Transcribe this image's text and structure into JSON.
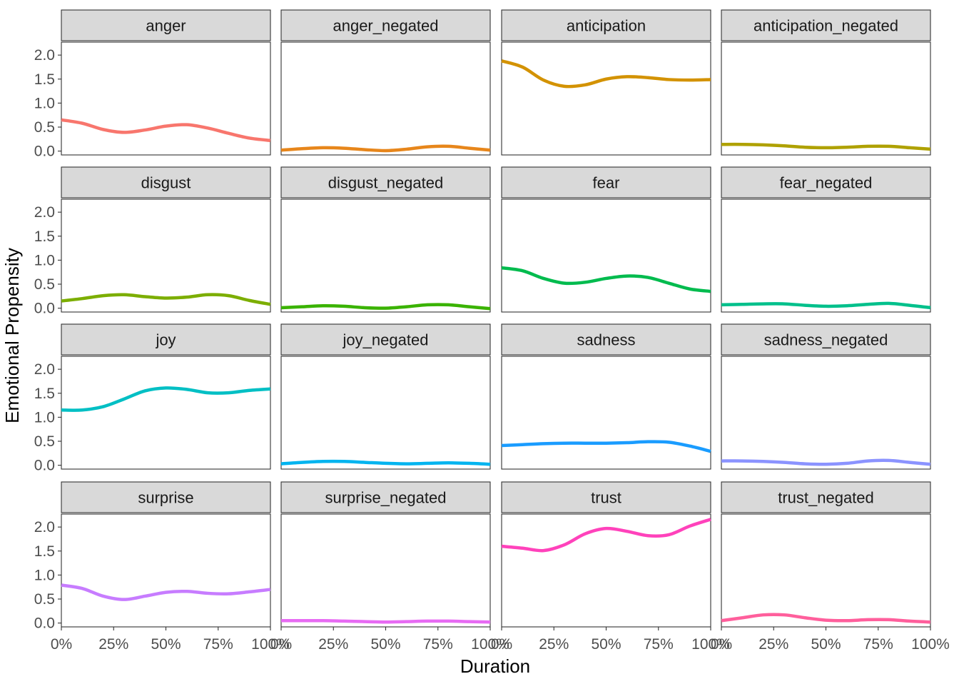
{
  "chart_data": {
    "type": "line",
    "xlabel": "Duration",
    "ylabel": "Emotional Propensity",
    "x_ticks": [
      "0%",
      "25%",
      "50%",
      "75%",
      "100%"
    ],
    "y_ticks": [
      "0.0",
      "0.5",
      "1.0",
      "1.5",
      "2.0"
    ],
    "x_range": [
      0,
      100
    ],
    "ylim": [
      -0.08,
      2.27
    ],
    "grid": false,
    "legend": "none",
    "panels": [
      {
        "name": "anger",
        "color": "#F8766D",
        "x": [
          0,
          10,
          20,
          30,
          40,
          50,
          60,
          70,
          80,
          90,
          100
        ],
        "y": [
          0.65,
          0.58,
          0.45,
          0.39,
          0.44,
          0.52,
          0.55,
          0.48,
          0.37,
          0.27,
          0.22
        ]
      },
      {
        "name": "anger_negated",
        "color": "#E7861B",
        "x": [
          0,
          10,
          20,
          30,
          40,
          50,
          60,
          70,
          80,
          90,
          100
        ],
        "y": [
          0.02,
          0.05,
          0.07,
          0.06,
          0.03,
          0.01,
          0.04,
          0.09,
          0.1,
          0.06,
          0.02
        ]
      },
      {
        "name": "anticipation",
        "color": "#D39200",
        "x": [
          0,
          10,
          20,
          30,
          40,
          50,
          60,
          70,
          80,
          90,
          100
        ],
        "y": [
          1.88,
          1.75,
          1.48,
          1.35,
          1.38,
          1.5,
          1.55,
          1.53,
          1.49,
          1.48,
          1.49
        ]
      },
      {
        "name": "anticipation_negated",
        "color": "#AFA100",
        "x": [
          0,
          10,
          20,
          30,
          40,
          50,
          60,
          70,
          80,
          90,
          100
        ],
        "y": [
          0.14,
          0.14,
          0.13,
          0.11,
          0.08,
          0.07,
          0.08,
          0.1,
          0.1,
          0.07,
          0.04
        ]
      },
      {
        "name": "disgust",
        "color": "#7CAE00",
        "x": [
          0,
          10,
          20,
          30,
          40,
          50,
          60,
          70,
          80,
          90,
          100
        ],
        "y": [
          0.15,
          0.2,
          0.26,
          0.28,
          0.24,
          0.21,
          0.23,
          0.28,
          0.26,
          0.16,
          0.08
        ]
      },
      {
        "name": "disgust_negated",
        "color": "#3AB300",
        "x": [
          0,
          10,
          20,
          30,
          40,
          50,
          60,
          70,
          80,
          90,
          100
        ],
        "y": [
          0.01,
          0.03,
          0.05,
          0.04,
          0.01,
          0.0,
          0.03,
          0.07,
          0.07,
          0.03,
          -0.01
        ]
      },
      {
        "name": "fear",
        "color": "#00BB4E",
        "x": [
          0,
          10,
          20,
          30,
          40,
          50,
          60,
          70,
          80,
          90,
          100
        ],
        "y": [
          0.84,
          0.78,
          0.62,
          0.52,
          0.54,
          0.62,
          0.67,
          0.64,
          0.52,
          0.4,
          0.35
        ]
      },
      {
        "name": "fear_negated",
        "color": "#00C08B",
        "x": [
          0,
          10,
          20,
          30,
          40,
          50,
          60,
          70,
          80,
          90,
          100
        ],
        "y": [
          0.07,
          0.08,
          0.09,
          0.09,
          0.06,
          0.04,
          0.05,
          0.08,
          0.1,
          0.06,
          0.01
        ]
      },
      {
        "name": "joy",
        "color": "#00BFC4",
        "x": [
          0,
          10,
          20,
          30,
          40,
          50,
          60,
          70,
          80,
          90,
          100
        ],
        "y": [
          1.15,
          1.15,
          1.22,
          1.38,
          1.55,
          1.61,
          1.58,
          1.51,
          1.51,
          1.56,
          1.59
        ]
      },
      {
        "name": "joy_negated",
        "color": "#00B4EF",
        "x": [
          0,
          10,
          20,
          30,
          40,
          50,
          60,
          70,
          80,
          90,
          100
        ],
        "y": [
          0.03,
          0.06,
          0.08,
          0.08,
          0.06,
          0.04,
          0.03,
          0.04,
          0.05,
          0.04,
          0.02
        ]
      },
      {
        "name": "sadness",
        "color": "#1A9CFF",
        "x": [
          0,
          10,
          20,
          30,
          40,
          50,
          60,
          70,
          80,
          90,
          100
        ],
        "y": [
          0.41,
          0.43,
          0.45,
          0.46,
          0.46,
          0.46,
          0.47,
          0.49,
          0.48,
          0.4,
          0.29
        ]
      },
      {
        "name": "sadness_negated",
        "color": "#8B93FF",
        "x": [
          0,
          10,
          20,
          30,
          40,
          50,
          60,
          70,
          80,
          90,
          100
        ],
        "y": [
          0.09,
          0.09,
          0.08,
          0.06,
          0.03,
          0.02,
          0.04,
          0.09,
          0.1,
          0.06,
          0.02
        ]
      },
      {
        "name": "surprise",
        "color": "#C77CFF",
        "x": [
          0,
          10,
          20,
          30,
          40,
          50,
          60,
          70,
          80,
          90,
          100
        ],
        "y": [
          0.79,
          0.72,
          0.56,
          0.49,
          0.56,
          0.64,
          0.66,
          0.62,
          0.61,
          0.65,
          0.7
        ]
      },
      {
        "name": "surprise_negated",
        "color": "#E76BF3",
        "x": [
          0,
          10,
          20,
          30,
          40,
          50,
          60,
          70,
          80,
          90,
          100
        ],
        "y": [
          0.05,
          0.05,
          0.05,
          0.04,
          0.03,
          0.02,
          0.03,
          0.04,
          0.04,
          0.03,
          0.02
        ]
      },
      {
        "name": "trust",
        "color": "#FF42BB",
        "x": [
          0,
          10,
          20,
          30,
          40,
          50,
          60,
          70,
          80,
          90,
          100
        ],
        "y": [
          1.6,
          1.56,
          1.51,
          1.63,
          1.86,
          1.97,
          1.91,
          1.82,
          1.84,
          2.02,
          2.16
        ]
      },
      {
        "name": "trust_negated",
        "color": "#FF5F9C",
        "x": [
          0,
          10,
          20,
          30,
          40,
          50,
          60,
          70,
          80,
          90,
          100
        ],
        "y": [
          0.05,
          0.11,
          0.17,
          0.17,
          0.11,
          0.06,
          0.05,
          0.07,
          0.07,
          0.04,
          0.02
        ]
      }
    ]
  }
}
